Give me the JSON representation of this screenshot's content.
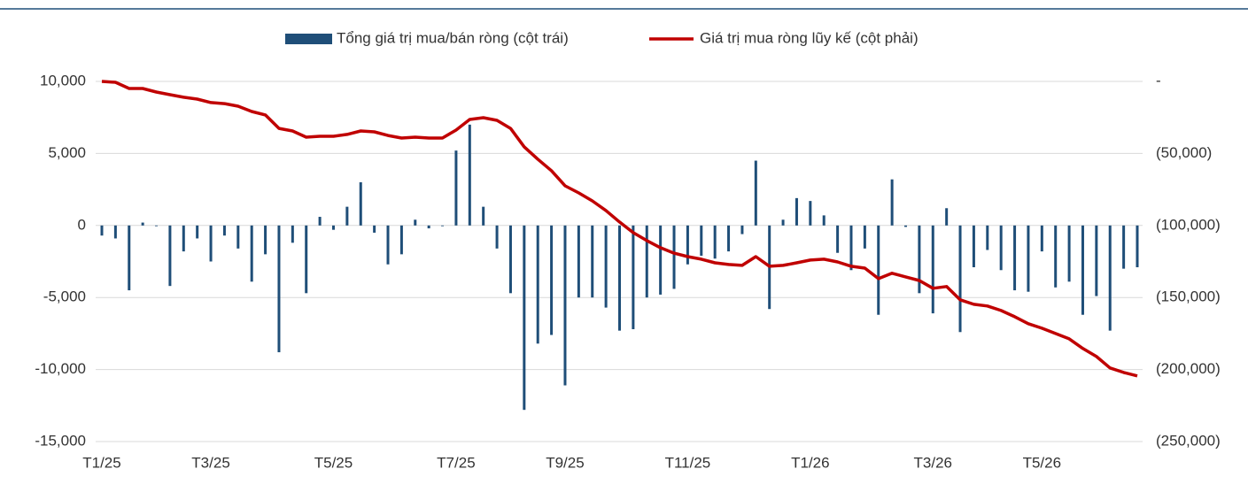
{
  "chart_data": {
    "type": "bar_line",
    "categories": [
      "T1/25",
      null,
      null,
      null,
      null,
      null,
      null,
      null,
      "T3/25",
      null,
      null,
      null,
      null,
      null,
      null,
      null,
      null,
      "T5/25",
      null,
      null,
      null,
      null,
      null,
      null,
      null,
      null,
      "T7/25",
      null,
      null,
      null,
      null,
      null,
      null,
      null,
      "T9/25",
      null,
      null,
      null,
      null,
      null,
      null,
      null,
      null,
      "T11/25",
      null,
      null,
      null,
      null,
      null,
      null,
      null,
      null,
      "T1/26",
      null,
      null,
      null,
      null,
      null,
      null,
      null,
      null,
      "T3/26",
      null,
      null,
      null,
      null,
      null,
      null,
      null,
      "T5/26",
      null,
      null,
      null,
      null,
      null,
      null,
      null
    ],
    "series": [
      {
        "name": "Tổng giá trị mua/bán ròng (cột trái)",
        "type": "bar",
        "color": "#1f4e78",
        "axis": "y",
        "values": [
          -700,
          -900,
          -4500,
          200,
          -50,
          -4200,
          -1800,
          -900,
          -2500,
          -700,
          -1600,
          -3900,
          -2000,
          -8800,
          -1200,
          -4700,
          600,
          -300,
          1300,
          3000,
          -500,
          -2700,
          -2000,
          400,
          -200,
          -50,
          5200,
          7000,
          1300,
          -1600,
          -4700,
          -12800,
          -8200,
          -7600,
          -11100,
          -5000,
          -5000,
          -5700,
          -7300,
          -7200,
          -5000,
          -4800,
          -4400,
          -2700,
          -2100,
          -2300,
          -1800,
          -600,
          4500,
          -5800,
          400,
          1900,
          1700,
          700,
          -1900,
          -3100,
          -1600,
          -6200,
          3200,
          -100,
          -4700,
          -6100,
          1200,
          -7400,
          -2900,
          -1700,
          -3100,
          -4500,
          -4600,
          -1800,
          -4300,
          -3900,
          -6200,
          -4900,
          -7300,
          -3000,
          -2900
        ]
      },
      {
        "name": "Giá trị mua ròng lũy kế (cột phải)",
        "type": "line",
        "color": "#c00000",
        "axis": "y2",
        "values": [
          0,
          -600,
          -4900,
          -4900,
          -7400,
          -9200,
          -11000,
          -12300,
          -14700,
          -15400,
          -17200,
          -20900,
          -23300,
          -32600,
          -34400,
          -38700,
          -38100,
          -38100,
          -36800,
          -34400,
          -35000,
          -37500,
          -39300,
          -38700,
          -39300,
          -39300,
          -33800,
          -26400,
          -25200,
          -27000,
          -32600,
          -45400,
          -54000,
          -62000,
          -72500,
          -77400,
          -82900,
          -89600,
          -97600,
          -105000,
          -110500,
          -115400,
          -119200,
          -121600,
          -123400,
          -125900,
          -127100,
          -127700,
          -121600,
          -128300,
          -127700,
          -125900,
          -124000,
          -123400,
          -125300,
          -128300,
          -129600,
          -136900,
          -133200,
          -135700,
          -138200,
          -143600,
          -142400,
          -151600,
          -154700,
          -155900,
          -159000,
          -163300,
          -168200,
          -171300,
          -175000,
          -178700,
          -185400,
          -191000,
          -198900,
          -202000,
          -204400
        ]
      }
    ],
    "ylim": [
      -15000,
      10000
    ],
    "yticks": [
      {
        "value": -15000,
        "label": "-15,000"
      },
      {
        "value": -10000,
        "label": "-10,000"
      },
      {
        "value": -5000,
        "label": "-5,000"
      },
      0,
      {
        "value": 5000,
        "label": "5,000"
      },
      {
        "value": 10000,
        "label": "10,000"
      }
    ],
    "y2lim": [
      -250000,
      0
    ],
    "y2ticks": [
      {
        "value": -250000,
        "label": "(250,000)"
      },
      {
        "value": -200000,
        "label": "(200,000)"
      },
      {
        "value": -150000,
        "label": "(150,000)"
      },
      {
        "value": -100000,
        "label": "(100,000)"
      },
      {
        "value": -50000,
        "label": "(50,000)"
      },
      {
        "value": 0,
        "label": "-"
      }
    ],
    "grid": true,
    "legend": "top"
  }
}
